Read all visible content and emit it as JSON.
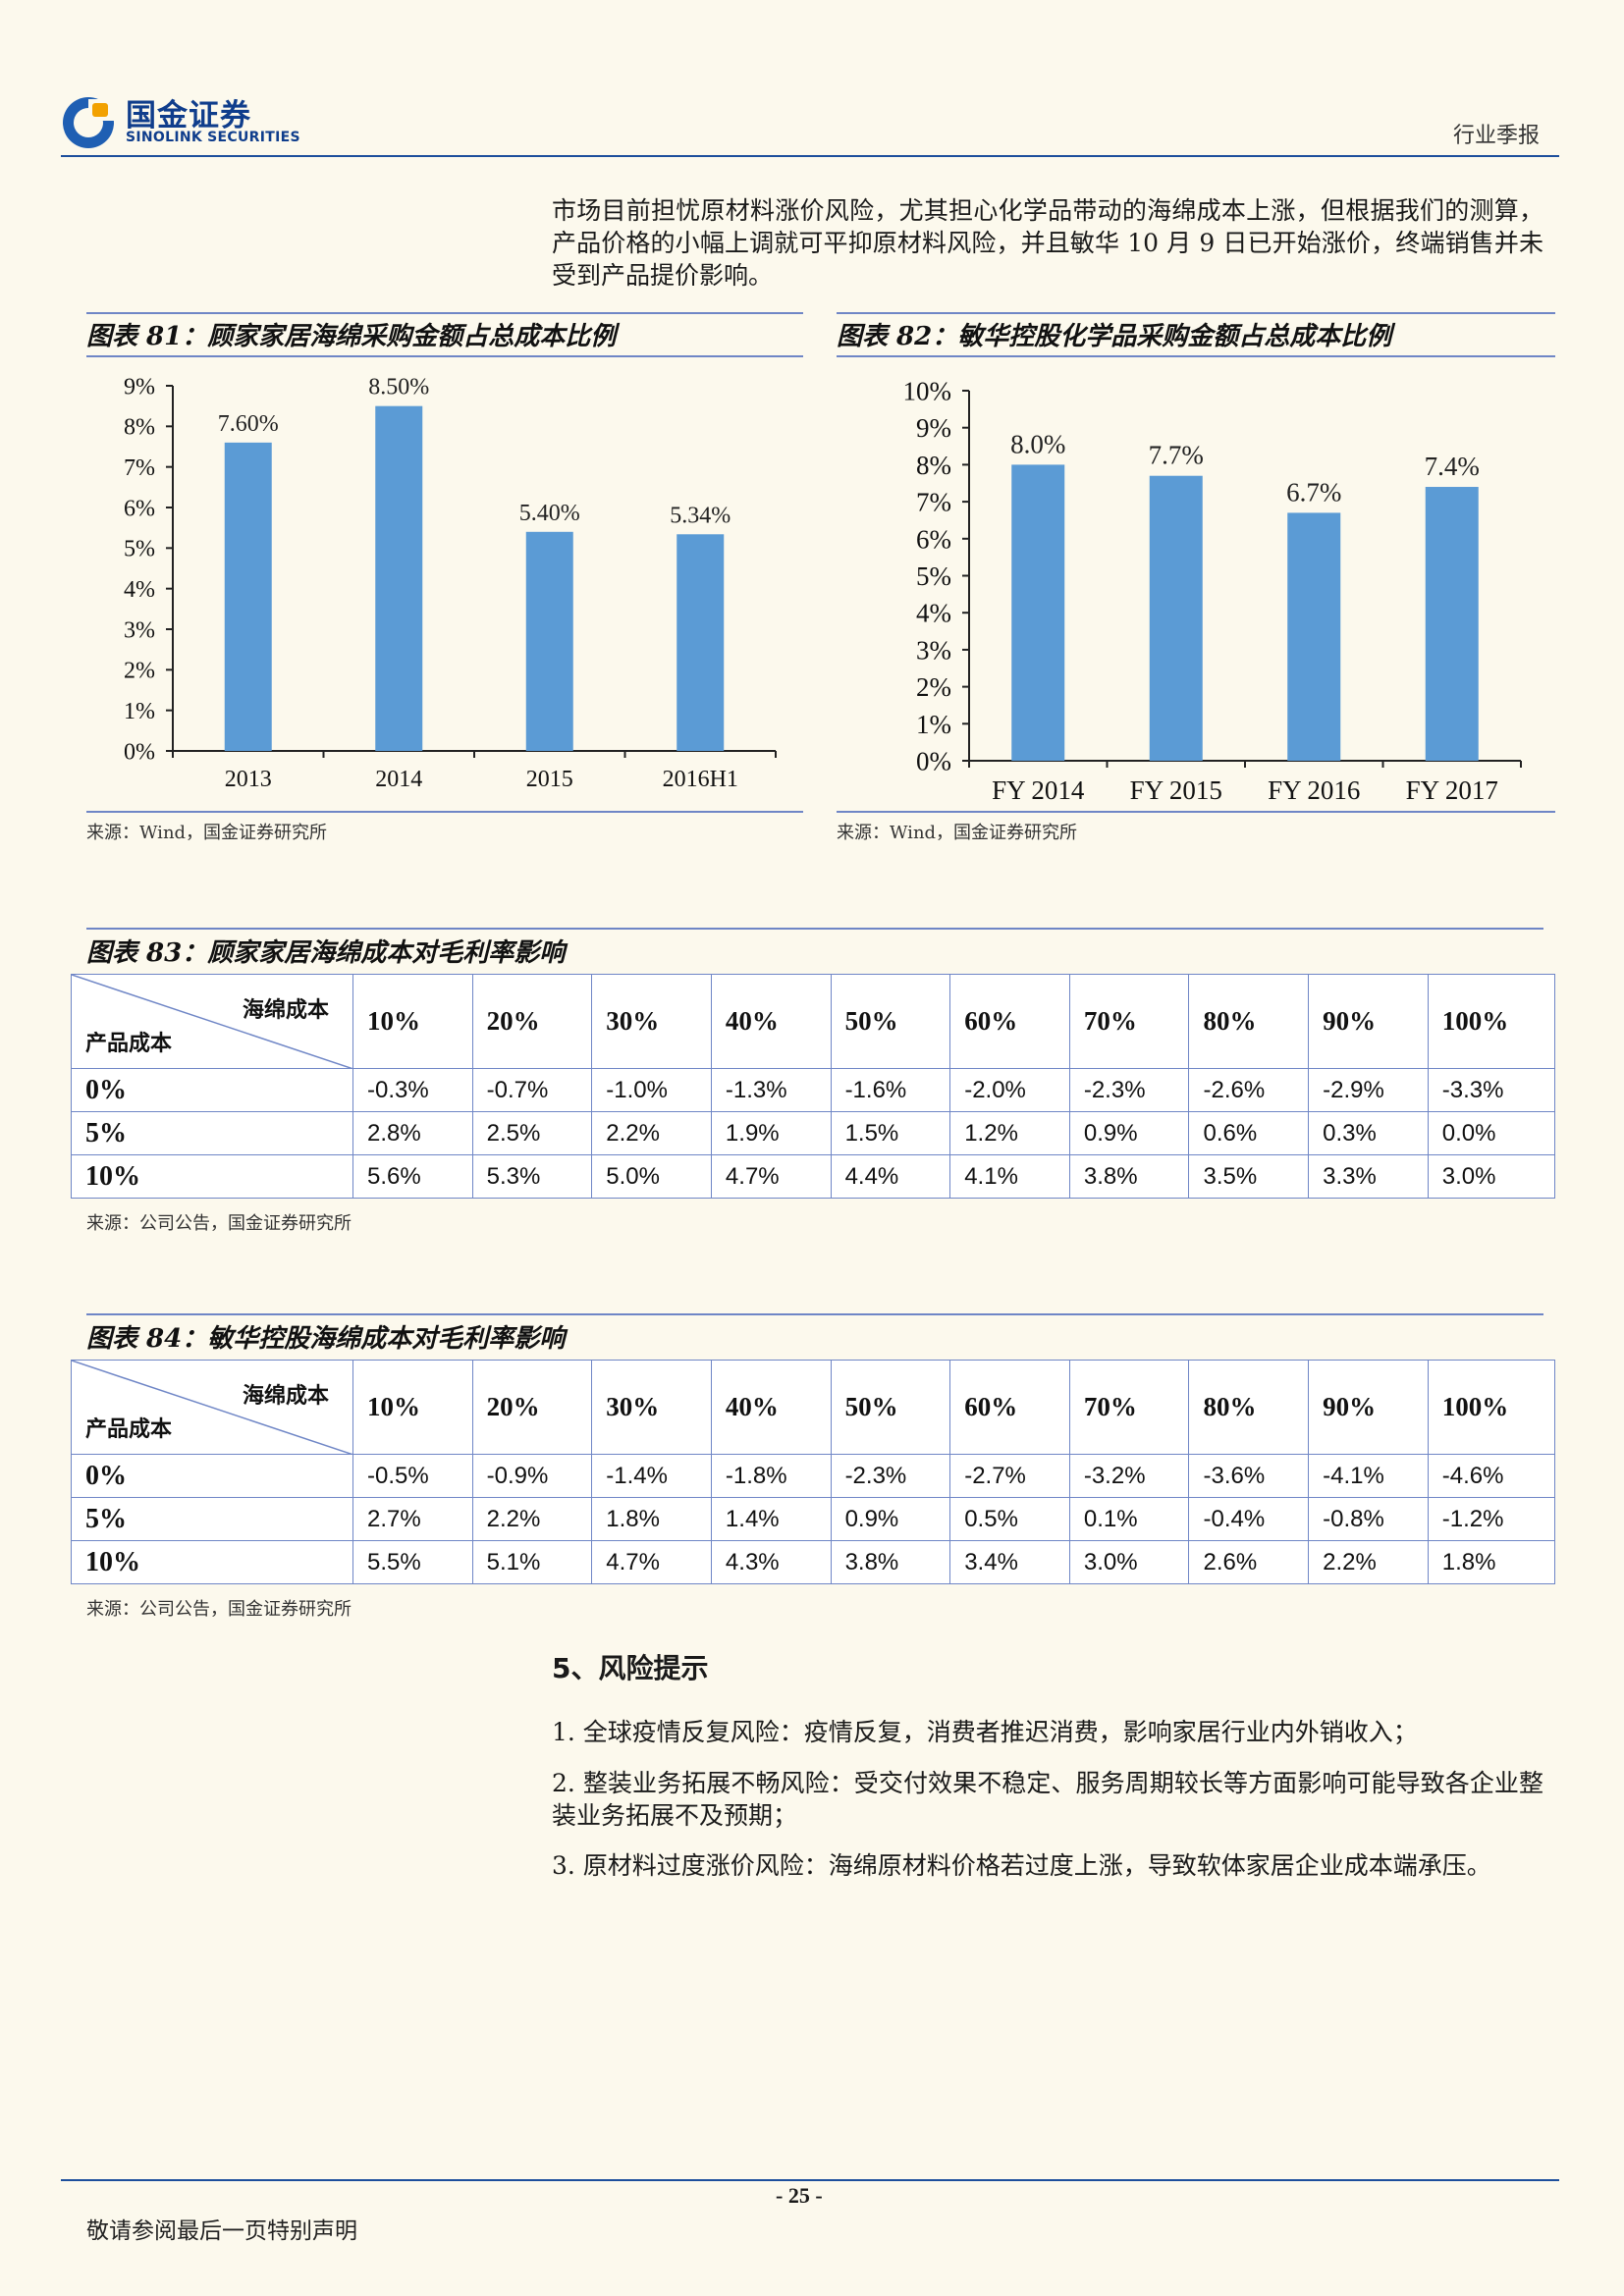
{
  "header": {
    "logo_cn": "国金证券",
    "logo_en": "SINOLINK SECURITIES",
    "report_type": "行业季报"
  },
  "intro": "市场目前担忧原材料涨价风险，尤其担心化学品带动的海绵成本上涨，但根据我们的测算，产品价格的小幅上调就可平抑原材料风险，并且敏华 10 月 9 日已开始涨价，终端销售并未受到产品提价影响。",
  "fig81": {
    "title": "图表 81：顾家家居海绵采购金额占总成本比例",
    "source": "来源：Wind，国金证券研究所"
  },
  "fig82": {
    "title": "图表 82：敏华控股化学品采购金额占总成本比例",
    "source": "来源：Wind，国金证券研究所"
  },
  "chart_data": [
    {
      "type": "bar",
      "title": "图表 81：顾家家居海绵采购金额占总成本比例",
      "categories": [
        "2013",
        "2014",
        "2015",
        "2016H1"
      ],
      "values": [
        7.6,
        8.5,
        5.4,
        5.34
      ],
      "value_labels": [
        "7.60%",
        "8.50%",
        "5.40%",
        "5.34%"
      ],
      "yticks": [
        "0%",
        "1%",
        "2%",
        "3%",
        "4%",
        "5%",
        "6%",
        "7%",
        "8%",
        "9%"
      ],
      "ylim": [
        0,
        9
      ],
      "color": "#5b9bd5",
      "grid": false
    },
    {
      "type": "bar",
      "title": "图表 82：敏华控股化学品采购金额占总成本比例",
      "categories": [
        "FY 2014",
        "FY 2015",
        "FY 2016",
        "FY 2017"
      ],
      "values": [
        8.0,
        7.7,
        6.7,
        7.4
      ],
      "value_labels": [
        "8.0%",
        "7.7%",
        "6.7%",
        "7.4%"
      ],
      "yticks": [
        "0%",
        "1%",
        "2%",
        "3%",
        "4%",
        "5%",
        "6%",
        "7%",
        "8%",
        "9%",
        "10%"
      ],
      "ylim": [
        0,
        10
      ],
      "color": "#5b9bd5",
      "grid": false
    }
  ],
  "table83": {
    "title": "图表 83：顾家家居海绵成本对毛利率影响",
    "corner_top": "海绵成本",
    "corner_bottom": "产品成本",
    "columns": [
      "10%",
      "20%",
      "30%",
      "40%",
      "50%",
      "60%",
      "70%",
      "80%",
      "90%",
      "100%"
    ],
    "rows": [
      {
        "label": "0%",
        "cells": [
          "-0.3%",
          "-0.7%",
          "-1.0%",
          "-1.3%",
          "-1.6%",
          "-2.0%",
          "-2.3%",
          "-2.6%",
          "-2.9%",
          "-3.3%"
        ]
      },
      {
        "label": "5%",
        "cells": [
          "2.8%",
          "2.5%",
          "2.2%",
          "1.9%",
          "1.5%",
          "1.2%",
          "0.9%",
          "0.6%",
          "0.3%",
          "0.0%"
        ]
      },
      {
        "label": "10%",
        "cells": [
          "5.6%",
          "5.3%",
          "5.0%",
          "4.7%",
          "4.4%",
          "4.1%",
          "3.8%",
          "3.5%",
          "3.3%",
          "3.0%"
        ]
      }
    ],
    "source": "来源：公司公告，国金证券研究所"
  },
  "table84": {
    "title": "图表 84：敏华控股海绵成本对毛利率影响",
    "corner_top": "海绵成本",
    "corner_bottom": "产品成本",
    "columns": [
      "10%",
      "20%",
      "30%",
      "40%",
      "50%",
      "60%",
      "70%",
      "80%",
      "90%",
      "100%"
    ],
    "rows": [
      {
        "label": "0%",
        "cells": [
          "-0.5%",
          "-0.9%",
          "-1.4%",
          "-1.8%",
          "-2.3%",
          "-2.7%",
          "-3.2%",
          "-3.6%",
          "-4.1%",
          "-4.6%"
        ]
      },
      {
        "label": "5%",
        "cells": [
          "2.7%",
          "2.2%",
          "1.8%",
          "1.4%",
          "0.9%",
          "0.5%",
          "0.1%",
          "-0.4%",
          "-0.8%",
          "-1.2%"
        ]
      },
      {
        "label": "10%",
        "cells": [
          "5.5%",
          "5.1%",
          "4.7%",
          "4.3%",
          "3.8%",
          "3.4%",
          "3.0%",
          "2.6%",
          "2.2%",
          "1.8%"
        ]
      }
    ],
    "source": "来源：公司公告，国金证券研究所"
  },
  "risk": {
    "title": "5、风险提示",
    "items": [
      "1. 全球疫情反复风险：疫情反复，消费者推迟消费，影响家居行业内外销收入；",
      "2. 整装业务拓展不畅风险：受交付效果不稳定、服务周期较长等方面影响可能导致各企业整装业务拓展不及预期；",
      "3. 原材料过度涨价风险：海绵原材料价格若过度上涨，导致软体家居企业成本端承压。"
    ]
  },
  "footer": {
    "page": "- 25 -",
    "disclaimer": "敬请参阅最后一页特别声明"
  }
}
